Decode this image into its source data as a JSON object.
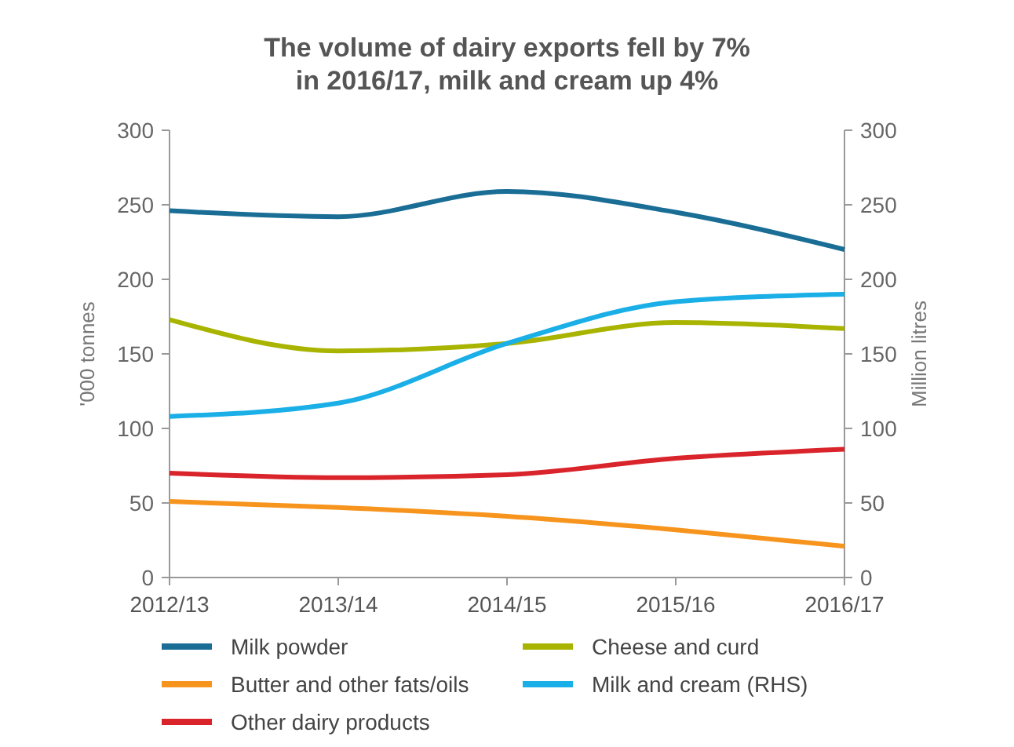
{
  "chart_data": {
    "type": "line",
    "title": "The volume of dairy exports fell by 7% in 2016/17, milk and cream up 4%",
    "ylabel": "'000 tonnes",
    "y2label": "Million litres",
    "categories": [
      "2012/13",
      "2013/14",
      "2014/15",
      "2015/16",
      "2016/17"
    ],
    "ylim": [
      0,
      300
    ],
    "yticks": [
      0,
      50,
      100,
      150,
      200,
      250,
      300
    ],
    "y2lim": [
      0,
      300
    ],
    "y2ticks": [
      0,
      50,
      100,
      150,
      200,
      250,
      300
    ],
    "grid": false,
    "legend": "bottom",
    "line_style": "solid",
    "series": [
      {
        "name": "Milk powder",
        "color": "#1a6e96",
        "values": [
          246,
          242,
          259,
          245,
          220
        ]
      },
      {
        "name": "Cheese and curd",
        "color": "#a8b400",
        "values": [
          173,
          152,
          157,
          171,
          167
        ]
      },
      {
        "name": "Butter and other fats/oils",
        "color": "#f7941d",
        "values": [
          51,
          47,
          41,
          32,
          21
        ]
      },
      {
        "name": "Milk and cream (RHS)",
        "color": "#1aafe6",
        "values": [
          108,
          117,
          157,
          185,
          190
        ],
        "axis": "y2"
      },
      {
        "name": "Other dairy products",
        "color": "#d9242b",
        "values": [
          70,
          67,
          69,
          80,
          86
        ]
      }
    ]
  }
}
